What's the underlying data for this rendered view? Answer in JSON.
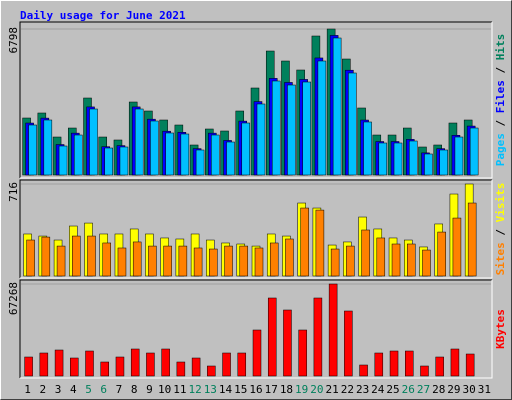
{
  "chart_data": [
    {
      "type": "bar",
      "title": "Daily usage for June 2021",
      "ylim": [
        0,
        6798
      ],
      "yticks": [
        6798
      ],
      "series": [
        {
          "name": "Pages",
          "color": "#00c0ff",
          "values": [
            2328,
            2561,
            1350,
            1862,
            3073,
            1257,
            1304,
            3073,
            2514,
            1956,
            1909,
            1164,
            1862,
            1536,
            2421,
            3306,
            4377,
            4190,
            4330,
            5308,
            6379,
            4749,
            2468,
            1490,
            1490,
            1583,
            978,
            1164,
            1769,
            2188,
            null
          ]
        },
        {
          "name": "Files",
          "color": "#0000ff",
          "values": [
            2420,
            2650,
            1420,
            1950,
            3170,
            1320,
            1370,
            3170,
            2600,
            2040,
            1990,
            1230,
            1950,
            1610,
            2510,
            3420,
            4500,
            4310,
            4450,
            5450,
            6500,
            4880,
            2560,
            1560,
            1560,
            1660,
            1030,
            1230,
            1850,
            2280,
            null
          ]
        },
        {
          "name": "Hits",
          "color": "#00805c",
          "values": [
            2654,
            2887,
            1769,
            2188,
            3585,
            1769,
            1630,
            3399,
            2980,
            2561,
            2328,
            1397,
            2142,
            2049,
            2980,
            4051,
            5773,
            5308,
            4889,
            6472,
            6798,
            5401,
            3120,
            1862,
            1862,
            2188,
            1304,
            1397,
            2421,
            2561,
            null
          ]
        }
      ]
    },
    {
      "type": "bar",
      "ylim": [
        0,
        716
      ],
      "yticks": [
        716
      ],
      "series": [
        {
          "name": "Sites",
          "color": "#ff8000",
          "values": [
            280,
            303,
            233,
            311,
            311,
            257,
            218,
            265,
            233,
            233,
            233,
            218,
            210,
            233,
            233,
            218,
            257,
            288,
            529,
            513,
            210,
            233,
            358,
            296,
            249,
            249,
            202,
            342,
            451,
            568,
            null
          ]
        },
        {
          "name": "Visits",
          "color": "#ffff00",
          "values": [
            327,
            311,
            280,
            389,
            412,
            327,
            327,
            366,
            327,
            296,
            288,
            327,
            280,
            257,
            249,
            233,
            327,
            311,
            568,
            529,
            241,
            265,
            459,
            366,
            296,
            280,
            226,
            405,
            638,
            716,
            null
          ]
        }
      ]
    },
    {
      "type": "bar",
      "ylim": [
        0,
        67268
      ],
      "yticks": [
        67268
      ],
      "categories": [
        "1",
        "2",
        "3",
        "4",
        "5",
        "6",
        "7",
        "8",
        "9",
        "10",
        "11",
        "12",
        "13",
        "14",
        "15",
        "16",
        "17",
        "18",
        "19",
        "20",
        "21",
        "22",
        "23",
        "24",
        "25",
        "26",
        "27",
        "28",
        "29",
        "30",
        "31"
      ],
      "category_colors": [
        "#000000",
        "#000000",
        "#000000",
        "#000000",
        "#00805c",
        "#00805c",
        "#000000",
        "#000000",
        "#000000",
        "#000000",
        "#000000",
        "#00805c",
        "#00805c",
        "#000000",
        "#000000",
        "#000000",
        "#000000",
        "#000000",
        "#00805c",
        "#00805c",
        "#000000",
        "#000000",
        "#000000",
        "#000000",
        "#000000",
        "#00805c",
        "#00805c",
        "#000000",
        "#000000",
        "#000000",
        "#000000"
      ],
      "series": [
        {
          "name": "KBytes",
          "color": "#ff0000",
          "values": [
            13893,
            16818,
            19011,
            13162,
            18280,
            10237,
            13893,
            19742,
            16818,
            19742,
            10237,
            13162,
            7312,
            16818,
            16818,
            33635,
            57034,
            48259,
            33635,
            57034,
            67268,
            47528,
            8043,
            16818,
            18280,
            18280,
            7312,
            13893,
            19742,
            16086,
            null
          ]
        }
      ]
    }
  ]
}
